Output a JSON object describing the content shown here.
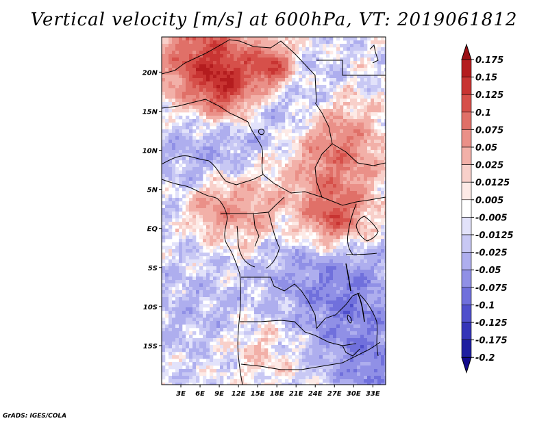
{
  "title": "Vertical velocity [m/s] at 600hPa, VT: 2019061812",
  "footer": "GrADS: IGES/COLA",
  "map": {
    "lon_ticks": [
      "3E",
      "6E",
      "9E",
      "12E",
      "15E",
      "18E",
      "21E",
      "24E",
      "27E",
      "30E",
      "33E"
    ],
    "lat_ticks": [
      "20N",
      "15N",
      "10N",
      "5N",
      "EQ",
      "5S",
      "10S",
      "15S"
    ],
    "lon_values": [
      3,
      6,
      9,
      12,
      15,
      18,
      21,
      24,
      27,
      30,
      33
    ],
    "lat_values": [
      20,
      15,
      10,
      5,
      0,
      -5,
      -10,
      -15
    ],
    "lon_range": [
      0,
      35
    ],
    "lat_range": [
      -20,
      24.5
    ],
    "features": [
      "coastlines",
      "country-borders",
      "lakes"
    ]
  },
  "colorbar": {
    "labels": [
      "0.175",
      "0.15",
      "0.125",
      "0.1",
      "0.075",
      "0.05",
      "0.025",
      "0.0125",
      "0.005",
      "-0.005",
      "-0.0125",
      "-0.025",
      "-0.05",
      "-0.075",
      "-0.1",
      "-0.125",
      "-0.175",
      "-0.2"
    ],
    "colors": [
      "#9b1015",
      "#b41c1e",
      "#c83432",
      "#d6504a",
      "#e07068",
      "#ea9088",
      "#f2b0a8",
      "#f8d0ca",
      "#fdeae6",
      "#ffffff",
      "#e2e2fa",
      "#c8c8f4",
      "#aeaeee",
      "#9090e6",
      "#7070dc",
      "#5050cc",
      "#3434b8",
      "#1e1ea0",
      "#120a8c"
    ]
  },
  "chart_data": {
    "type": "heatmap",
    "title": "Vertical velocity [m/s] at 600hPa, VT: 2019061812",
    "variable": "Vertical velocity",
    "units": "m/s",
    "level": "600hPa",
    "valid_time": "2019061812",
    "x_ticks": [
      "3E",
      "6E",
      "9E",
      "12E",
      "15E",
      "18E",
      "21E",
      "24E",
      "27E",
      "30E",
      "33E"
    ],
    "y_ticks": [
      "20N",
      "15N",
      "10N",
      "5N",
      "EQ",
      "5S",
      "10S",
      "15S"
    ],
    "xlim": [
      0,
      35
    ],
    "ylim": [
      -20,
      24.5
    ],
    "levels": [
      -0.2,
      -0.175,
      -0.125,
      -0.1,
      -0.075,
      -0.05,
      -0.025,
      -0.0125,
      -0.005,
      0.005,
      0.0125,
      0.025,
      0.05,
      0.075,
      0.1,
      0.125,
      0.15,
      0.175
    ]
  }
}
